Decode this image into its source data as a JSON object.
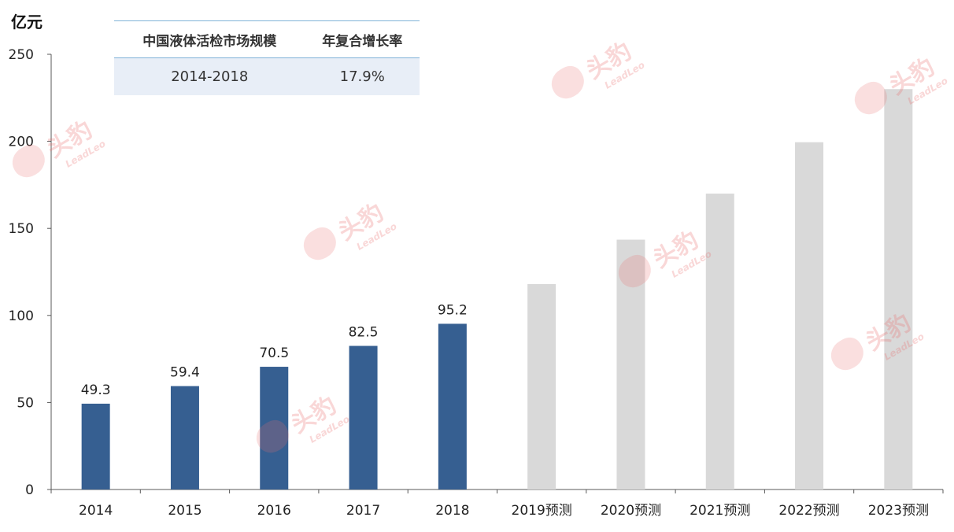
{
  "unit_label": "亿元",
  "cagr_table": {
    "headers": [
      "中国液体活检市场规模",
      "年复合增长率"
    ],
    "rows": [
      [
        "2014-2018",
        "17.9%"
      ]
    ]
  },
  "watermark": {
    "main": "头豹",
    "sub": "LeadLeo"
  },
  "colors": {
    "actual": "#365f91",
    "forecast": "#d9d9d9",
    "axis": "#595959"
  },
  "chart_data": {
    "type": "bar",
    "title": "",
    "xlabel": "",
    "ylabel": "亿元",
    "ylim": [
      0,
      250
    ],
    "yticks": [
      0,
      50,
      100,
      150,
      200,
      250
    ],
    "grid": false,
    "categories": [
      "2014",
      "2015",
      "2016",
      "2017",
      "2018",
      "2019预测",
      "2020预测",
      "2021预测",
      "2022预测",
      "2023预测"
    ],
    "series": [
      {
        "values": [
          49.3,
          59.4,
          70.5,
          82.5,
          95.2,
          null,
          null,
          null,
          null,
          null
        ],
        "data_labels": true
      },
      {
        "values": [
          null,
          null,
          null,
          null,
          null,
          118,
          143.5,
          170,
          199.5,
          230
        ],
        "data_labels": false
      }
    ]
  }
}
